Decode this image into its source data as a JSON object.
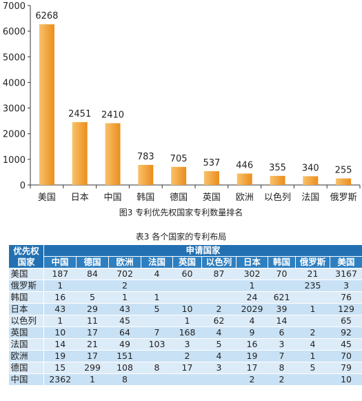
{
  "chart_data": {
    "type": "bar",
    "categories": [
      "美国",
      "日本",
      "中国",
      "韩国",
      "德国",
      "英国",
      "欧洲",
      "以色列",
      "法国",
      "俄罗斯"
    ],
    "values": [
      6268,
      2451,
      2410,
      783,
      705,
      537,
      446,
      355,
      340,
      255
    ],
    "title": "图3 专利优先权国家专利数量排名",
    "xlabel": "",
    "ylabel": "",
    "ylim": [
      0,
      7000
    ],
    "yticks": [
      0,
      1000,
      2000,
      3000,
      4000,
      5000,
      6000,
      7000
    ],
    "grid": false,
    "colors": {
      "bar_light": "#f8c26a",
      "bar_dark": "#eb8d1c"
    }
  },
  "table": {
    "caption": "表3 各个国家的专利布局",
    "corner_label_line1": "优先权",
    "corner_label_line2": "国家",
    "group_header": "申请国家",
    "columns": [
      "中国",
      "德国",
      "欧洲",
      "法国",
      "英国",
      "以色列",
      "日本",
      "韩国",
      "俄罗斯",
      "美国"
    ],
    "rows": [
      {
        "label": "美国",
        "cells": [
          "187",
          "84",
          "702",
          "4",
          "60",
          "87",
          "302",
          "70",
          "21",
          "3167"
        ]
      },
      {
        "label": "俄罗斯",
        "cells": [
          "1",
          "",
          "2",
          "",
          "",
          "",
          "1",
          "",
          "235",
          "3"
        ]
      },
      {
        "label": "韩国",
        "cells": [
          "16",
          "5",
          "1",
          "1",
          "",
          "",
          "24",
          "621",
          "",
          "76"
        ]
      },
      {
        "label": "日本",
        "cells": [
          "43",
          "29",
          "43",
          "5",
          "10",
          "2",
          "2029",
          "39",
          "1",
          "129"
        ]
      },
      {
        "label": "以色列",
        "cells": [
          "1",
          "11",
          "45",
          "",
          "1",
          "62",
          "4",
          "14",
          "",
          "65"
        ]
      },
      {
        "label": "英国",
        "cells": [
          "10",
          "17",
          "64",
          "7",
          "168",
          "4",
          "9",
          "6",
          "2",
          "92"
        ]
      },
      {
        "label": "法国",
        "cells": [
          "14",
          "21",
          "49",
          "103",
          "3",
          "5",
          "16",
          "3",
          "4",
          "45"
        ]
      },
      {
        "label": "欧洲",
        "cells": [
          "19",
          "17",
          "151",
          "",
          "2",
          "4",
          "19",
          "7",
          "1",
          "70"
        ]
      },
      {
        "label": "德国",
        "cells": [
          "15",
          "299",
          "108",
          "8",
          "17",
          "3",
          "17",
          "8",
          "5",
          "79"
        ]
      },
      {
        "label": "中国",
        "cells": [
          "2362",
          "1",
          "8",
          "",
          "",
          "",
          "2",
          "2",
          "",
          "10"
        ]
      }
    ],
    "colors": {
      "header": "#2270b1",
      "row_a": "#dcebf8",
      "row_b": "#c9e1f4"
    }
  }
}
